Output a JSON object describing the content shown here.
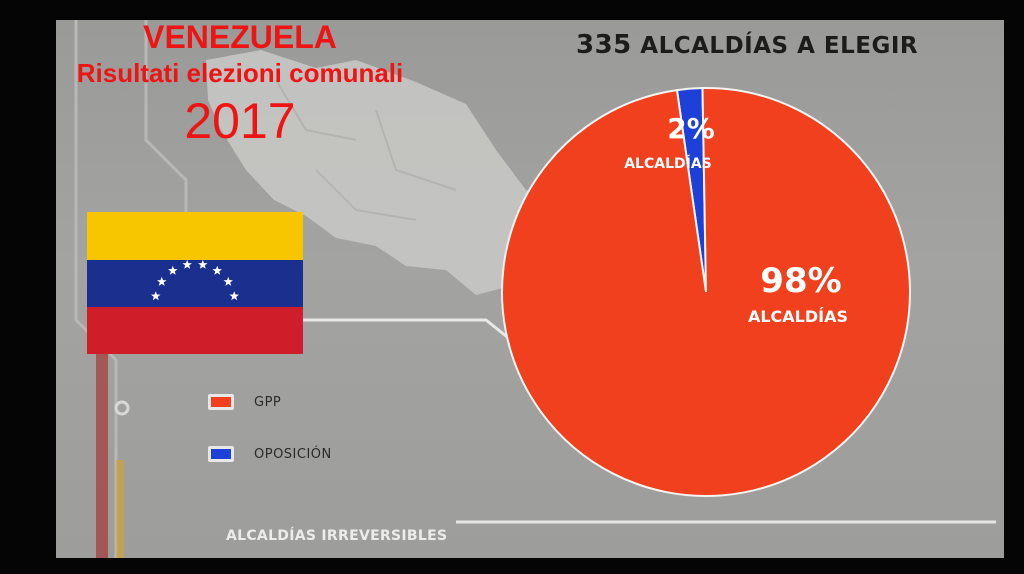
{
  "overlay": {
    "country": "VENEZUELA",
    "subtitle": "Risultati elezioni comunali",
    "year": "2017"
  },
  "header": {
    "count": "335",
    "text": "ALCALDÍAS A ELEGIR"
  },
  "footer": {
    "text": "ALCALDÍAS IRREVERSIBLES"
  },
  "chart_data": {
    "type": "pie",
    "series": [
      {
        "name": "GPP",
        "value": 98,
        "label": "98%",
        "sublabel": "ALCALDÍAS",
        "color": "#f0401e"
      },
      {
        "name": "OPOSICIÓN",
        "value": 2,
        "label": "2%",
        "sublabel": "ALCALDÍAS",
        "color": "#1c40d8"
      }
    ],
    "legend": [
      {
        "name": "GPP",
        "color": "#f0401e"
      },
      {
        "name": "OPOSICIÓN",
        "color": "#1c40d8"
      }
    ]
  },
  "colors": {
    "title_red": "#ee1414",
    "flag_yellow": "#f7c600",
    "flag_blue": "#1a2f8e",
    "flag_red": "#cf1e2a"
  }
}
